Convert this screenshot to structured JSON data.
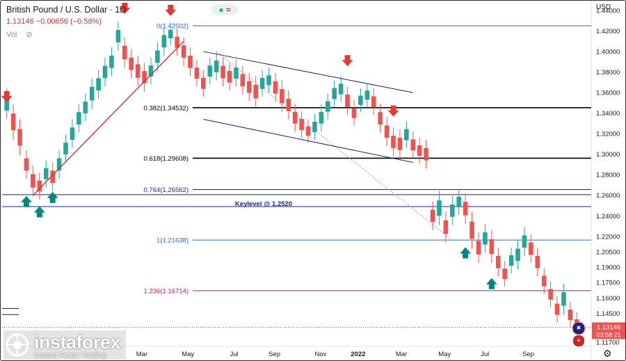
{
  "header": {
    "title": "British Pound / U.S. Dollar · 1D",
    "ohlc_change": "1.13146 −0.00656 (−0.58%)",
    "volume_label": "Vol",
    "currency": "USD"
  },
  "watermark": {
    "brand": "instaforex",
    "tagline": "Instant Forex Trading"
  },
  "colors": {
    "up": "#26a69a",
    "down": "#ef5350",
    "fib_blue": "#2962ff",
    "fib_dark": "#000000",
    "fib_purple": "#311b92",
    "fib_pink": "#c2185b",
    "trend_red": "#d32f2f",
    "channel": "#1a237e",
    "keylevel": "#1a237e",
    "price_tag": "#ef5350"
  },
  "icons": [
    "eye-off-icon",
    "arrow-down-icon",
    "arrow-up-icon",
    "gear-icon",
    "flag-uk-icon",
    "flag-us-icon"
  ],
  "chart_data": {
    "type": "candlestick",
    "title": "British Pound / U.S. Dollar · 1D",
    "ylim": [
      1.1135,
      1.4495
    ],
    "y_ticks": [
      "1.44000",
      "1.42000",
      "1.40000",
      "1.38000",
      "1.36000",
      "1.34000",
      "1.32000",
      "1.30000",
      "1.28000",
      "1.26000",
      "1.24000",
      "1.22000",
      "1.20500",
      "1.19000",
      "1.17500",
      "1.16000",
      "1.14500",
      "1.11700"
    ],
    "x_ticks": [
      "Mar",
      "May",
      "Jul",
      "Sep",
      "Nov",
      "2022",
      "Mar",
      "May",
      "Jul",
      "Sep"
    ],
    "last_price": "1.13146",
    "countdown": "03:58:21",
    "fib_levels": [
      {
        "label": "0(1.42502)",
        "value": 1.42502
      },
      {
        "label": "0.382(1.34532)",
        "value": 1.34532
      },
      {
        "label": "0.618(1.29608)",
        "value": 1.29608
      },
      {
        "label": "0.764(1.26562)",
        "value": 1.26562
      },
      {
        "label": "1(1.21638)",
        "value": 1.21638
      },
      {
        "label": "1.236(1.16714)",
        "value": 1.16714
      }
    ],
    "key_level": {
      "label": "Keylevel @ 1.2520",
      "value": 1.252
    },
    "series_path": [
      [
        1.36,
        1.338
      ],
      [
        1.345,
        1.318
      ],
      [
        1.33,
        1.303
      ],
      [
        1.3,
        1.28
      ],
      [
        1.285,
        1.263
      ],
      [
        1.278,
        1.26
      ],
      [
        1.29,
        1.272
      ],
      [
        1.288,
        1.268
      ],
      [
        1.3,
        1.28
      ],
      [
        1.315,
        1.296
      ],
      [
        1.33,
        1.31
      ],
      [
        1.345,
        1.325
      ],
      [
        1.355,
        1.336
      ],
      [
        1.37,
        1.348
      ],
      [
        1.378,
        1.358
      ],
      [
        1.39,
        1.37
      ],
      [
        1.4,
        1.38
      ],
      [
        1.425,
        1.405
      ],
      [
        1.41,
        1.388
      ],
      [
        1.398,
        1.378
      ],
      [
        1.392,
        1.37
      ],
      [
        1.385,
        1.365
      ],
      [
        1.39,
        1.372
      ],
      [
        1.405,
        1.385
      ],
      [
        1.42,
        1.4
      ],
      [
        1.424,
        1.41
      ],
      [
        1.418,
        1.4
      ],
      [
        1.41,
        1.39
      ],
      [
        1.4,
        1.38
      ],
      [
        1.388,
        1.37
      ],
      [
        1.378,
        1.36
      ],
      [
        1.39,
        1.372
      ],
      [
        1.395,
        1.376
      ],
      [
        1.39,
        1.37
      ],
      [
        1.385,
        1.366
      ],
      [
        1.388,
        1.37
      ],
      [
        1.382,
        1.362
      ],
      [
        1.375,
        1.356
      ],
      [
        1.372,
        1.35
      ],
      [
        1.378,
        1.36
      ],
      [
        1.38,
        1.364
      ],
      [
        1.375,
        1.355
      ],
      [
        1.368,
        1.345
      ],
      [
        1.358,
        1.338
      ],
      [
        1.345,
        1.326
      ],
      [
        1.338,
        1.32
      ],
      [
        1.33,
        1.315
      ],
      [
        1.335,
        1.318
      ],
      [
        1.345,
        1.326
      ],
      [
        1.355,
        1.338
      ],
      [
        1.368,
        1.35
      ],
      [
        1.372,
        1.355
      ],
      [
        1.362,
        1.342
      ],
      [
        1.348,
        1.332
      ],
      [
        1.36,
        1.345
      ],
      [
        1.365,
        1.35
      ],
      [
        1.36,
        1.342
      ],
      [
        1.345,
        1.325
      ],
      [
        1.332,
        1.312
      ],
      [
        1.322,
        1.302
      ],
      [
        1.32,
        1.3
      ],
      [
        1.328,
        1.31
      ],
      [
        1.318,
        1.3
      ],
      [
        1.312,
        1.295
      ],
      [
        1.31,
        1.29
      ],
      [
        1.25,
        1.23
      ],
      [
        1.26,
        1.235
      ],
      [
        1.24,
        1.218
      ],
      [
        1.255,
        1.235
      ],
      [
        1.262,
        1.245
      ],
      [
        1.258,
        1.236
      ],
      [
        1.24,
        1.212
      ],
      [
        1.22,
        1.198
      ],
      [
        1.228,
        1.208
      ],
      [
        1.222,
        1.198
      ],
      [
        1.205,
        1.185
      ],
      [
        1.192,
        1.175
      ],
      [
        1.205,
        1.188
      ],
      [
        1.212,
        1.192
      ],
      [
        1.225,
        1.205
      ],
      [
        1.218,
        1.198
      ],
      [
        1.205,
        1.185
      ],
      [
        1.185,
        1.168
      ],
      [
        1.172,
        1.155
      ],
      [
        1.158,
        1.14
      ],
      [
        1.17,
        1.148
      ],
      [
        1.152,
        1.135
      ],
      [
        1.142,
        1.128
      ]
    ],
    "arrows_down": [
      {
        "bar": 0,
        "value": 1.352
      },
      {
        "bar": 18,
        "value": 1.438
      },
      {
        "bar": 25,
        "value": 1.436
      },
      {
        "bar": 52,
        "value": 1.387
      },
      {
        "bar": 59,
        "value": 1.338
      }
    ],
    "arrows_up": [
      {
        "bar": 3,
        "value": 1.258
      },
      {
        "bar": 5,
        "value": 1.248
      },
      {
        "bar": 7,
        "value": 1.262
      },
      {
        "bar": 70,
        "value": 1.208
      },
      {
        "bar": 74,
        "value": 1.178
      }
    ],
    "trend_line": [
      [
        1.26,
        4
      ],
      [
        1.41,
        27
      ]
    ],
    "channel_upper": [
      [
        1.4,
        30
      ],
      [
        1.36,
        62
      ]
    ],
    "channel_lower": [
      [
        1.334,
        30
      ],
      [
        1.292,
        62
      ]
    ],
    "projection_line": [
      [
        1.4,
        32
      ],
      [
        1.216,
        68
      ]
    ]
  }
}
